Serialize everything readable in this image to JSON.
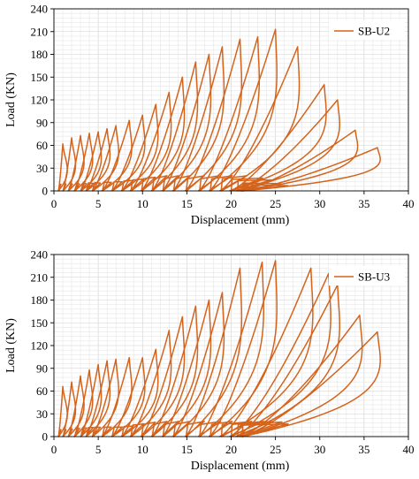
{
  "chart_data": [
    {
      "type": "line",
      "title": "",
      "xlabel": "Displacement (mm)",
      "ylabel": "Load (KN)",
      "xlim": [
        0,
        40
      ],
      "ylim": [
        0,
        240
      ],
      "xticks": [
        "0",
        "5",
        "10",
        "15",
        "20",
        "25",
        "30",
        "35",
        "40"
      ],
      "yticks": [
        "0",
        "30",
        "60",
        "90",
        "120",
        "150",
        "180",
        "210",
        "240"
      ],
      "grid": true,
      "legend": "top-right",
      "series_color": "#d4641c",
      "series": [
        {
          "name": "SB-U2",
          "cycles": [
            {
              "dmax": 1.0,
              "pmax": 62,
              "res": 0.5
            },
            {
              "dmax": 2.0,
              "pmax": 70,
              "res": 1.0
            },
            {
              "dmax": 3.0,
              "pmax": 73,
              "res": 1.6
            },
            {
              "dmax": 4.0,
              "pmax": 76,
              "res": 2.3
            },
            {
              "dmax": 5.0,
              "pmax": 78,
              "res": 3.0
            },
            {
              "dmax": 6.0,
              "pmax": 82,
              "res": 3.6
            },
            {
              "dmax": 7.0,
              "pmax": 86,
              "res": 4.3
            },
            {
              "dmax": 8.5,
              "pmax": 93,
              "res": 5.4
            },
            {
              "dmax": 10.0,
              "pmax": 100,
              "res": 6.5
            },
            {
              "dmax": 11.5,
              "pmax": 114,
              "res": 7.6
            },
            {
              "dmax": 13.0,
              "pmax": 130,
              "res": 8.6
            },
            {
              "dmax": 14.5,
              "pmax": 150,
              "res": 9.8
            },
            {
              "dmax": 16.0,
              "pmax": 170,
              "res": 11.0
            },
            {
              "dmax": 17.5,
              "pmax": 180,
              "res": 12.2
            },
            {
              "dmax": 19.0,
              "pmax": 190,
              "res": 13.4
            },
            {
              "dmax": 21.0,
              "pmax": 200,
              "res": 14.8
            },
            {
              "dmax": 23.0,
              "pmax": 203,
              "res": 16.3
            },
            {
              "dmax": 25.0,
              "pmax": 213,
              "res": 17.5
            },
            {
              "dmax": 27.5,
              "pmax": 190,
              "res": 18.7
            },
            {
              "dmax": 30.5,
              "pmax": 140,
              "res": 19.8
            },
            {
              "dmax": 32.0,
              "pmax": 120,
              "res": 20.5
            },
            {
              "dmax": 34.0,
              "pmax": 80,
              "res": 21.0
            },
            {
              "dmax": 36.5,
              "pmax": 57,
              "res": 21.0
            }
          ]
        }
      ]
    },
    {
      "type": "line",
      "title": "",
      "xlabel": "Displacement (mm)",
      "ylabel": "Load (KN)",
      "xlim": [
        0,
        40
      ],
      "ylim": [
        0,
        240
      ],
      "xticks": [
        "0",
        "5",
        "10",
        "15",
        "20",
        "25",
        "30",
        "35",
        "40"
      ],
      "yticks": [
        "0",
        "30",
        "60",
        "90",
        "120",
        "150",
        "180",
        "210",
        "240"
      ],
      "grid": true,
      "legend": "top-right",
      "series_color": "#d4641c",
      "series": [
        {
          "name": "SB-U3",
          "cycles": [
            {
              "dmax": 1.0,
              "pmax": 66,
              "res": 0.5
            },
            {
              "dmax": 2.0,
              "pmax": 72,
              "res": 1.0
            },
            {
              "dmax": 3.0,
              "pmax": 80,
              "res": 1.6
            },
            {
              "dmax": 4.0,
              "pmax": 88,
              "res": 2.3
            },
            {
              "dmax": 5.0,
              "pmax": 95,
              "res": 3.0
            },
            {
              "dmax": 6.0,
              "pmax": 100,
              "res": 3.6
            },
            {
              "dmax": 7.0,
              "pmax": 102,
              "res": 4.3
            },
            {
              "dmax": 8.5,
              "pmax": 104,
              "res": 5.4
            },
            {
              "dmax": 10.0,
              "pmax": 104,
              "res": 6.5
            },
            {
              "dmax": 11.5,
              "pmax": 115,
              "res": 7.6
            },
            {
              "dmax": 13.0,
              "pmax": 140,
              "res": 8.6
            },
            {
              "dmax": 14.5,
              "pmax": 158,
              "res": 9.8
            },
            {
              "dmax": 16.0,
              "pmax": 172,
              "res": 11.0
            },
            {
              "dmax": 17.5,
              "pmax": 180,
              "res": 12.2
            },
            {
              "dmax": 19.0,
              "pmax": 190,
              "res": 13.4
            },
            {
              "dmax": 21.0,
              "pmax": 222,
              "res": 14.8
            },
            {
              "dmax": 23.5,
              "pmax": 230,
              "res": 16.3
            },
            {
              "dmax": 25.0,
              "pmax": 232,
              "res": 17.5
            },
            {
              "dmax": 29.0,
              "pmax": 222,
              "res": 18.7
            },
            {
              "dmax": 31.0,
              "pmax": 215,
              "res": 19.8
            },
            {
              "dmax": 32.0,
              "pmax": 200,
              "res": 20.5
            },
            {
              "dmax": 34.5,
              "pmax": 160,
              "res": 21.0
            },
            {
              "dmax": 36.5,
              "pmax": 138,
              "res": 21.0
            }
          ]
        }
      ]
    }
  ]
}
